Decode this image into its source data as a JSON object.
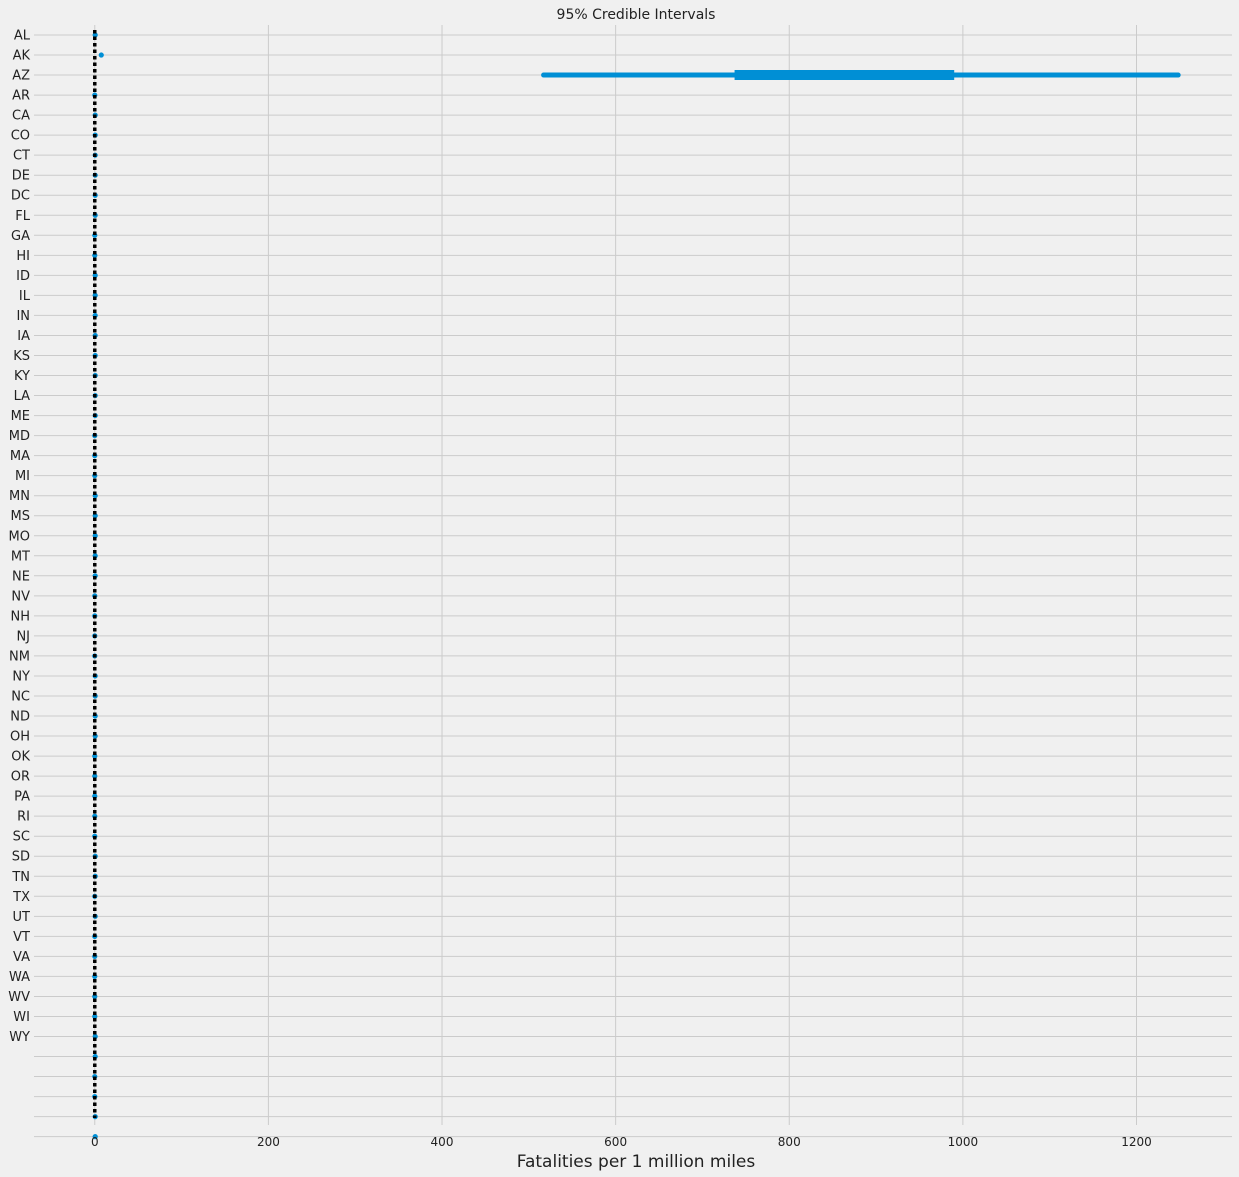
{
  "chart_data": {
    "type": "interval",
    "title": "95% Credible Intervals",
    "xlabel": "Fatalities per 1 million miles",
    "ylabel": "",
    "xlim": [
      -70,
      1310
    ],
    "xticks": [
      0,
      200,
      400,
      600,
      800,
      1000,
      1200
    ],
    "grid": true,
    "colors": {
      "interval": "#008fd5",
      "reference": "#000000",
      "grid": "#cbcbcb",
      "background": "#f0f0f0"
    },
    "reference_line": {
      "x": 0,
      "style": "dotted"
    },
    "categories": [
      "AL",
      "AK",
      "AZ",
      "AR",
      "CA",
      "CO",
      "CT",
      "DE",
      "DC",
      "FL",
      "GA",
      "HI",
      "ID",
      "IL",
      "IN",
      "IA",
      "KS",
      "KY",
      "LA",
      "ME",
      "MD",
      "MA",
      "MI",
      "MN",
      "MS",
      "MO",
      "MT",
      "NE",
      "NV",
      "NH",
      "NJ",
      "NM",
      "NY",
      "NC",
      "ND",
      "OH",
      "OK",
      "OR",
      "PA",
      "RI",
      "SC",
      "SD",
      "TN",
      "TX",
      "UT",
      "VT",
      "VA",
      "WA",
      "WV",
      "WI",
      "WY",
      "",
      "",
      "",
      "",
      ""
    ],
    "series": [
      {
        "low": [
          0.5,
          7.5,
          517,
          0,
          0.5,
          0.5,
          0.5,
          0.5,
          0.5,
          0.5,
          0,
          0,
          0.5,
          0.5,
          0.5,
          0.5,
          0.5,
          0.5,
          0.5,
          0.5,
          0,
          0,
          0,
          0.5,
          0.5,
          0.5,
          0.5,
          0.5,
          0,
          0,
          0,
          0,
          0.5,
          0.5,
          0.5,
          0.5,
          0,
          0,
          0,
          0,
          0,
          0.5,
          0.5,
          0,
          0.5,
          0,
          0,
          0,
          0,
          0,
          0.5,
          0.5,
          0,
          0,
          0.5,
          0.5
        ],
        "q25": [
          0.5,
          7.5,
          737,
          0,
          0.5,
          0.5,
          0.5,
          0.5,
          0.5,
          0.5,
          0,
          0,
          0.5,
          0.5,
          0.5,
          0.5,
          0.5,
          0.5,
          0.5,
          0.5,
          0,
          0,
          0,
          0.5,
          0.5,
          0.5,
          0.5,
          0.5,
          0,
          0,
          0,
          0,
          0.5,
          0.5,
          0.5,
          0.5,
          0,
          0,
          0,
          0,
          0,
          0.5,
          0.5,
          0,
          0.5,
          0,
          0,
          0,
          0,
          0,
          0.5,
          0.5,
          0,
          0,
          0.5,
          0.5
        ],
        "median": [
          0.5,
          7.5,
          860,
          0,
          0.5,
          0.5,
          0.5,
          0.5,
          0.5,
          0.5,
          0,
          0,
          0.5,
          0.5,
          0.5,
          0.5,
          0.5,
          0.5,
          0.5,
          0.5,
          0,
          0,
          0,
          0.5,
          0.5,
          0.5,
          0.5,
          0.5,
          0,
          0,
          0,
          0,
          0.5,
          0.5,
          0.5,
          0.5,
          0,
          0,
          0,
          0,
          0,
          0.5,
          0.5,
          0,
          0.5,
          0,
          0,
          0,
          0,
          0,
          0.5,
          0.5,
          0,
          0,
          0.5,
          0.5
        ],
        "q75": [
          0.5,
          7.5,
          990,
          0,
          0.5,
          0.5,
          0.5,
          0.5,
          0.5,
          0.5,
          0,
          0,
          0.5,
          0.5,
          0.5,
          0.5,
          0.5,
          0.5,
          0.5,
          0.5,
          0,
          0,
          0,
          0.5,
          0.5,
          0.5,
          0.5,
          0.5,
          0,
          0,
          0,
          0,
          0.5,
          0.5,
          0.5,
          0.5,
          0,
          0,
          0,
          0,
          0,
          0.5,
          0.5,
          0,
          0.5,
          0,
          0,
          0,
          0,
          0,
          0.5,
          0.5,
          0,
          0,
          0.5,
          0.5
        ],
        "high": [
          0.5,
          7.5,
          1248,
          0,
          0.5,
          0.5,
          0.5,
          0.5,
          0.5,
          0.5,
          0,
          0,
          0.5,
          0.5,
          0.5,
          0.5,
          0.5,
          0.5,
          0.5,
          0.5,
          0,
          0,
          0,
          0.5,
          0.5,
          0.5,
          0.5,
          0.5,
          0,
          0,
          0,
          0,
          0.5,
          0.5,
          0.5,
          0.5,
          0,
          0,
          0,
          0,
          0,
          0.5,
          0.5,
          0,
          0.5,
          0,
          0,
          0,
          0,
          0,
          0.5,
          0.5,
          0,
          0,
          0.5,
          0.5
        ]
      }
    ]
  }
}
